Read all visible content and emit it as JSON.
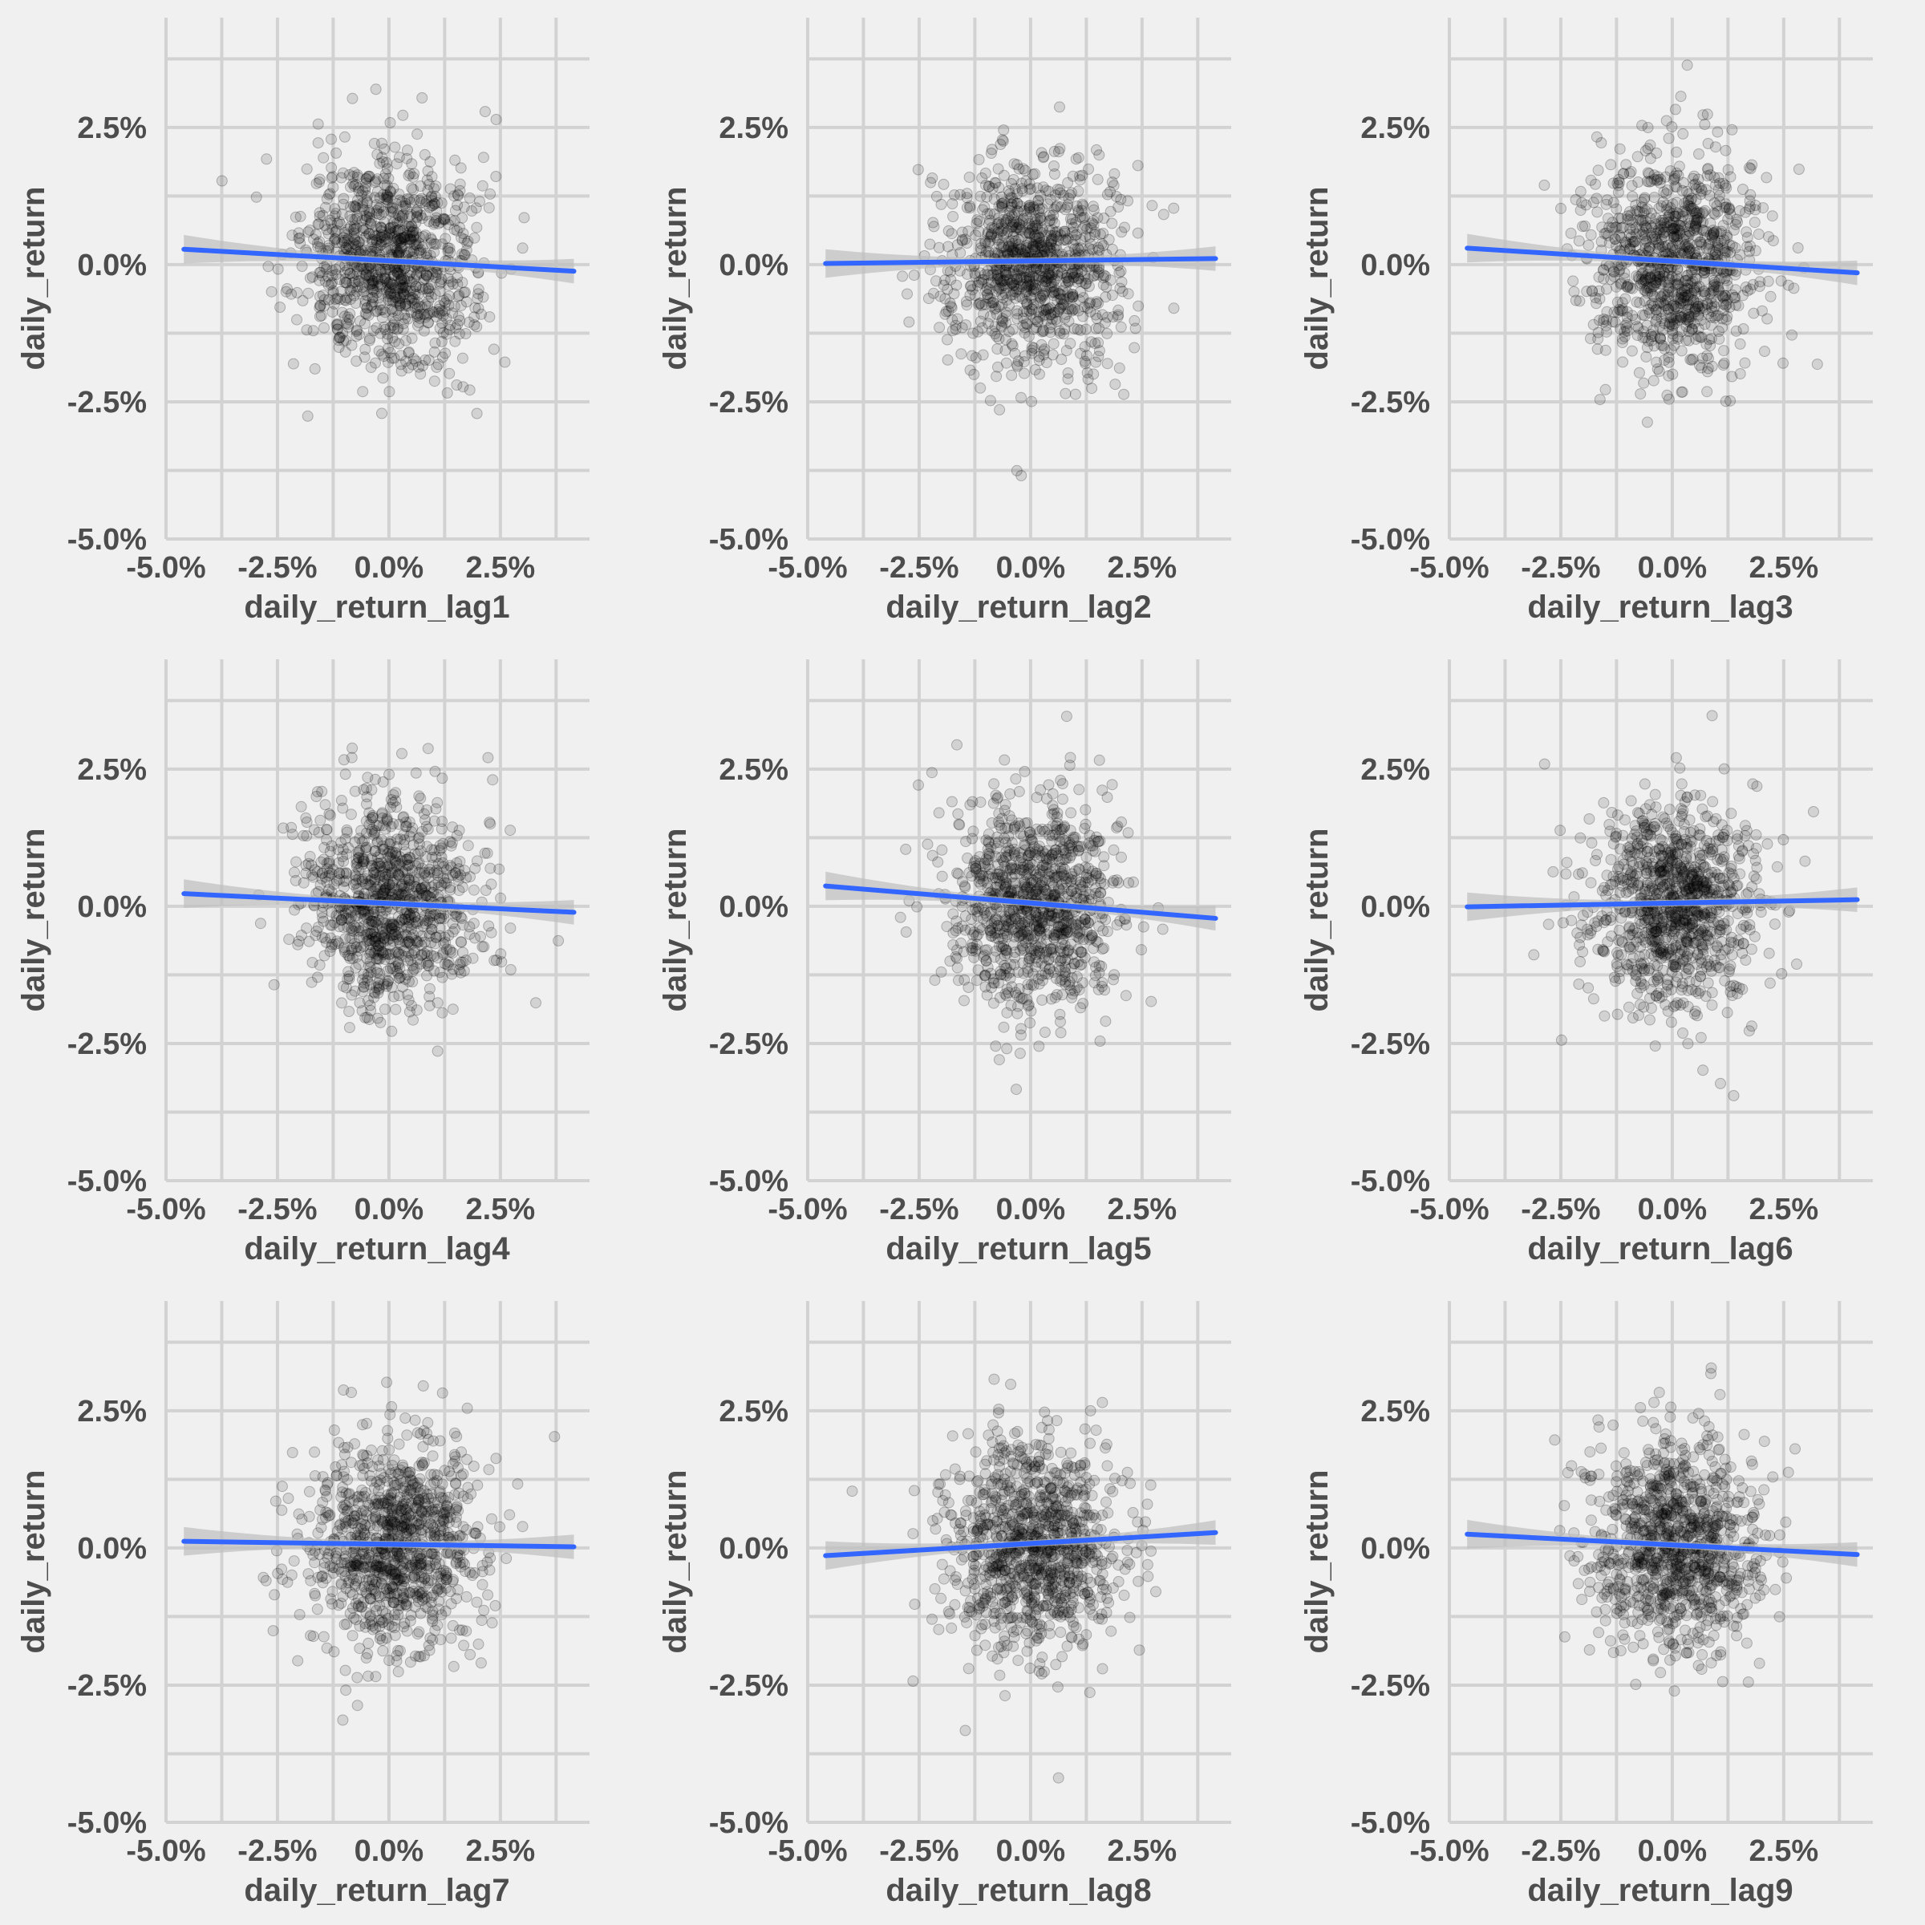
{
  "chart_data": {
    "type": "scatter",
    "layout": "3x3 grid of panels",
    "shared": {
      "xlim": [
        -0.05,
        0.045
      ],
      "ylim": [
        -0.05,
        0.045
      ],
      "x_ticks": [
        -0.05,
        -0.025,
        0.0,
        0.025
      ],
      "x_tick_labels": [
        "-5.0%",
        "-2.5%",
        "0.0%",
        "2.5%"
      ],
      "y_ticks": [
        -0.05,
        -0.025,
        0.0,
        0.025
      ],
      "y_tick_labels": [
        "-5.0%",
        "-2.5%",
        "0.0%",
        "2.5%"
      ],
      "ylabel": "daily_return",
      "grid": true,
      "point_color": "#000000",
      "point_alpha": 0.12,
      "fit_line_color": "#3366ff",
      "confidence_band_color": "#bdbdbd",
      "background_color": "#f0f0f0",
      "grid_color": "#d2d2d2",
      "point_count_per_panel": 1000
    },
    "panels": [
      {
        "xlabel": "daily_return_lag1",
        "fit": {
          "x": [
            -0.046,
            0.0415
          ],
          "y": [
            0.0028,
            -0.0012
          ]
        }
      },
      {
        "xlabel": "daily_return_lag2",
        "fit": {
          "x": [
            -0.046,
            0.0415
          ],
          "y": [
            0.0002,
            0.0011
          ]
        }
      },
      {
        "xlabel": "daily_return_lag3",
        "fit": {
          "x": [
            -0.046,
            0.0415
          ],
          "y": [
            0.003,
            -0.0015
          ]
        }
      },
      {
        "xlabel": "daily_return_lag4",
        "fit": {
          "x": [
            -0.046,
            0.0415
          ],
          "y": [
            0.0023,
            -0.0011
          ]
        }
      },
      {
        "xlabel": "daily_return_lag5",
        "fit": {
          "x": [
            -0.046,
            0.0415
          ],
          "y": [
            0.0037,
            -0.0022
          ]
        }
      },
      {
        "xlabel": "daily_return_lag6",
        "fit": {
          "x": [
            -0.046,
            0.0415
          ],
          "y": [
            -0.0001,
            0.0012
          ]
        }
      },
      {
        "xlabel": "daily_return_lag7",
        "fit": {
          "x": [
            -0.046,
            0.0415
          ],
          "y": [
            0.0012,
            0.0002
          ]
        }
      },
      {
        "xlabel": "daily_return_lag8",
        "fit": {
          "x": [
            -0.046,
            0.0415
          ],
          "y": [
            -0.0014,
            0.0028
          ]
        }
      },
      {
        "xlabel": "daily_return_lag9",
        "fit": {
          "x": [
            -0.046,
            0.0415
          ],
          "y": [
            0.0025,
            -0.0012
          ]
        }
      }
    ]
  }
}
